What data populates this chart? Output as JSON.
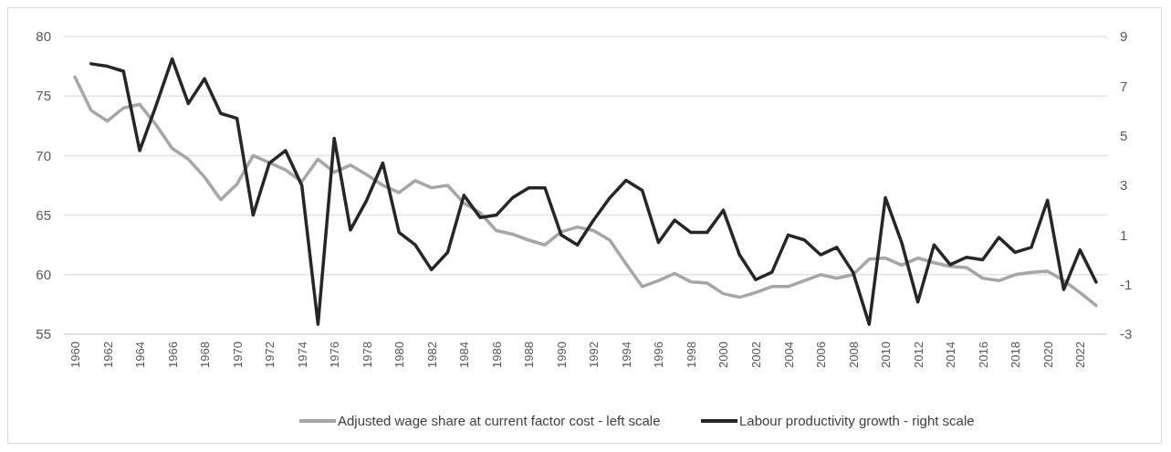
{
  "chart_data": {
    "type": "line",
    "categories": [
      "1960",
      null,
      "1962",
      null,
      "1964",
      null,
      "1966",
      null,
      "1968",
      null,
      "1970",
      null,
      "1972",
      null,
      "1974",
      null,
      "1976",
      null,
      "1978",
      null,
      "1980",
      null,
      "1982",
      null,
      "1984",
      null,
      "1986",
      null,
      "1988",
      null,
      "1990",
      null,
      "1992",
      null,
      "1994",
      null,
      "1996",
      null,
      "1998",
      null,
      "2000",
      null,
      "2002",
      null,
      "2004",
      null,
      "2006",
      null,
      "2008",
      null,
      "2010",
      null,
      "2012",
      null,
      "2014",
      null,
      "2016",
      null,
      "2018",
      null,
      "2020",
      null,
      "2022",
      null
    ],
    "series": [
      {
        "name": "Adjusted wage share at current factor cost - left scale",
        "color": "#a6a6a6",
        "values": [
          76.6,
          73.8,
          72.9,
          74.0,
          74.3,
          72.6,
          70.6,
          69.7,
          68.2,
          66.3,
          67.6,
          70.0,
          69.4,
          68.8,
          67.8,
          69.7,
          68.6,
          69.2,
          68.4,
          67.5,
          66.9,
          67.9,
          67.3,
          67.5,
          66.0,
          65.2,
          63.7,
          63.4,
          62.9,
          62.5,
          63.6,
          64.0,
          63.7,
          62.9,
          60.9,
          59.0,
          59.5,
          60.1,
          59.4,
          59.3,
          58.4,
          58.1,
          58.5,
          59.0,
          59.0,
          59.5,
          60.0,
          59.7,
          60.0,
          61.3,
          61.4,
          60.8,
          61.4,
          61.0,
          60.7,
          60.6,
          59.7,
          59.5,
          60.0,
          60.2,
          60.3,
          59.5,
          58.5,
          57.4
        ]
      },
      {
        "name": "Labour productivity growth - right scale",
        "color": "#262626",
        "axis": "y2",
        "values": [
          null,
          7.9,
          7.8,
          7.6,
          4.4,
          6.2,
          8.1,
          6.3,
          7.3,
          5.9,
          5.7,
          1.8,
          3.9,
          4.4,
          3.0,
          -2.6,
          4.9,
          1.2,
          2.4,
          3.9,
          1.1,
          0.6,
          -0.4,
          0.3,
          2.6,
          1.7,
          1.8,
          2.5,
          2.9,
          2.9,
          1.0,
          0.6,
          1.6,
          2.5,
          3.2,
          2.8,
          0.7,
          1.6,
          1.1,
          1.1,
          2.0,
          0.2,
          -0.8,
          -0.5,
          1.0,
          0.8,
          0.2,
          0.5,
          -0.5,
          -2.6,
          2.5,
          0.7,
          -1.7,
          0.6,
          -0.2,
          0.1,
          0.0,
          0.9,
          0.3,
          0.5,
          2.4,
          -1.2,
          0.4,
          -0.9
        ]
      }
    ],
    "ylim": [
      55,
      80
    ],
    "yticks": [
      55,
      60,
      65,
      70,
      75,
      80
    ],
    "y2lim": [
      -3,
      9
    ],
    "y2ticks": [
      -3,
      -1,
      1,
      3,
      5,
      7,
      9
    ],
    "grid": "y",
    "legend": "bottom",
    "line_style": "solid",
    "marker": "none"
  }
}
